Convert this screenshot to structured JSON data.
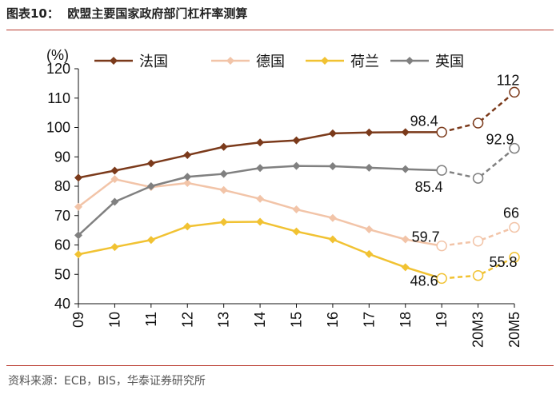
{
  "figure_title": "图表10：  欧盟主要国家政府部门杠杆率测算",
  "source_note": "资料来源：ECB，BIS，华泰证券研究所",
  "chart_data": {
    "type": "line",
    "title": "欧盟主要国家政府部门杠杆率测算",
    "unit_label": "(%)",
    "xlabel": "",
    "ylabel": "(%)",
    "categories": [
      "09",
      "10",
      "11",
      "12",
      "13",
      "14",
      "15",
      "16",
      "17",
      "18",
      "19",
      "20M3",
      "20M5"
    ],
    "ylim": [
      40,
      120
    ],
    "yticks": [
      40,
      50,
      60,
      70,
      80,
      90,
      100,
      110,
      120
    ],
    "legend_position": "top",
    "series": [
      {
        "name": "法国",
        "color": "#7b3a1b",
        "marker": "diamond",
        "values": [
          82.9,
          85.3,
          87.8,
          90.6,
          93.4,
          94.9,
          95.6,
          98.0,
          98.3,
          98.4,
          98.4,
          101.5,
          112
        ]
      },
      {
        "name": "德国",
        "color": "#f2c4a8",
        "marker": "diamond",
        "values": [
          73.0,
          82.4,
          79.7,
          81.1,
          78.7,
          75.7,
          72.1,
          69.2,
          65.3,
          61.9,
          59.7,
          61.3,
          66
        ]
      },
      {
        "name": "荷兰",
        "color": "#f1c232",
        "marker": "diamond",
        "values": [
          56.8,
          59.3,
          61.7,
          66.3,
          67.8,
          67.9,
          64.6,
          61.9,
          56.9,
          52.4,
          48.6,
          49.6,
          55.8
        ]
      },
      {
        "name": "英国",
        "color": "#808080",
        "marker": "diamond",
        "values": [
          63.3,
          74.7,
          80.0,
          83.2,
          84.2,
          86.2,
          86.9,
          86.8,
          86.3,
          85.8,
          85.4,
          82.7,
          92.9
        ]
      }
    ],
    "solid_until_index": 10,
    "annotations": [
      {
        "series": "法国",
        "category": "19",
        "text": "98.4"
      },
      {
        "series": "法国",
        "category": "20M5",
        "text": "112"
      },
      {
        "series": "英国",
        "category": "19",
        "text": "85.4"
      },
      {
        "series": "英国",
        "category": "20M5",
        "text": "92.9"
      },
      {
        "series": "德国",
        "category": "19",
        "text": "59.7"
      },
      {
        "series": "德国",
        "category": "20M5",
        "text": "66"
      },
      {
        "series": "荷兰",
        "category": "19",
        "text": "48.6"
      },
      {
        "series": "荷兰",
        "category": "20M5",
        "text": "55.8"
      }
    ]
  }
}
